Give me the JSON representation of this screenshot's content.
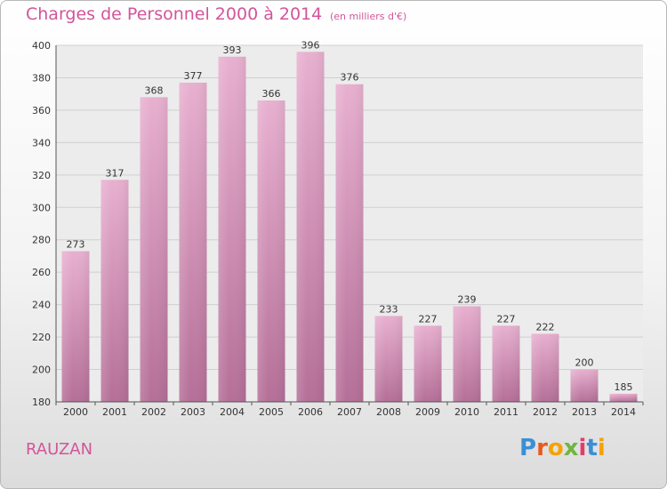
{
  "header": {
    "title": "Charges de Personnel 2000 à 2014",
    "subtitle": "(en milliers d'€)"
  },
  "footer": {
    "commune": "RAUZAN",
    "logo": "Proxiti"
  },
  "colors": {
    "accent": "#d2559a",
    "bar_top": "#e8b0d0",
    "bar_bottom": "#b56f98",
    "logo_letters": [
      "#3a8fd6",
      "#e85a1e",
      "#f5a300",
      "#6fb63f",
      "#e43c6b",
      "#3a8fd6",
      "#f5a300"
    ]
  },
  "chart_data": {
    "type": "bar",
    "categories": [
      "2000",
      "2001",
      "2002",
      "2003",
      "2004",
      "2005",
      "2006",
      "2007",
      "2008",
      "2009",
      "2010",
      "2011",
      "2012",
      "2013",
      "2014"
    ],
    "values": [
      273,
      317,
      368,
      377,
      393,
      366,
      396,
      376,
      233,
      227,
      239,
      227,
      222,
      200,
      185
    ],
    "title": "Charges de Personnel 2000 à 2014",
    "subtitle": "(en milliers d'€)",
    "ylim": [
      180,
      400
    ],
    "yticks": [
      180,
      200,
      220,
      240,
      260,
      280,
      300,
      320,
      340,
      360,
      380,
      400
    ],
    "grid": true,
    "data_labels": true
  }
}
